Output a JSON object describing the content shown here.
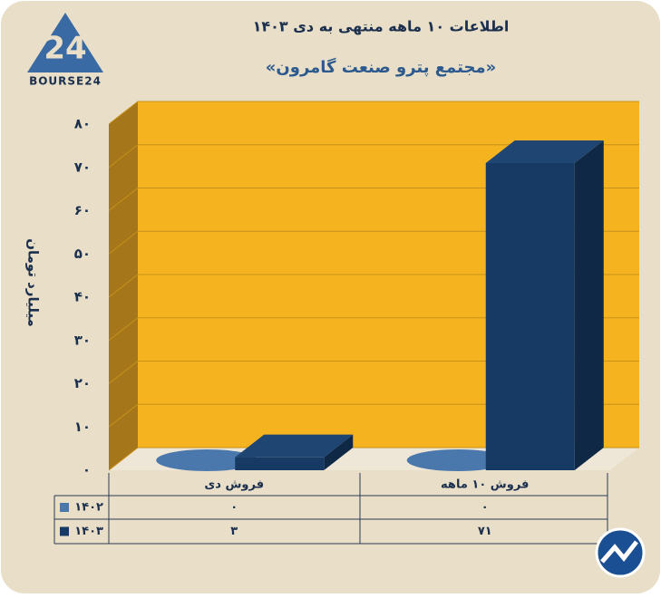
{
  "logo": "BOURSE24",
  "chart_data": {
    "type": "bar3d",
    "title": "اطلاعات ۱۰ ماهه منتهی به دی ۱۴۰۳",
    "subtitle": "«مجتمع پترو صنعت گامرون»",
    "y_label": "میلیارد تومان",
    "categories": [
      "فروش دی",
      "فروش ۱۰ ماهه"
    ],
    "series": [
      {
        "name": "۱۴۰۲",
        "color": "#4a78ad",
        "values": [
          0,
          0
        ],
        "value_labels": [
          "۰",
          "۰"
        ]
      },
      {
        "name": "۱۴۰۳",
        "color": "#163a63",
        "values": [
          3,
          71
        ],
        "value_labels": [
          "۳",
          "۷۱"
        ]
      }
    ],
    "ylim": [
      0,
      80
    ],
    "yticks": [
      {
        "value": 0,
        "label": "۰"
      },
      {
        "value": 10,
        "label": "۱۰"
      },
      {
        "value": 20,
        "label": "۲۰"
      },
      {
        "value": 30,
        "label": "۳۰"
      },
      {
        "value": 40,
        "label": "۴۰"
      },
      {
        "value": 50,
        "label": "۵۰"
      },
      {
        "value": 60,
        "label": "۶۰"
      },
      {
        "value": 70,
        "label": "۷۰"
      },
      {
        "value": 80,
        "label": "۸۰"
      }
    ],
    "grid": true
  }
}
